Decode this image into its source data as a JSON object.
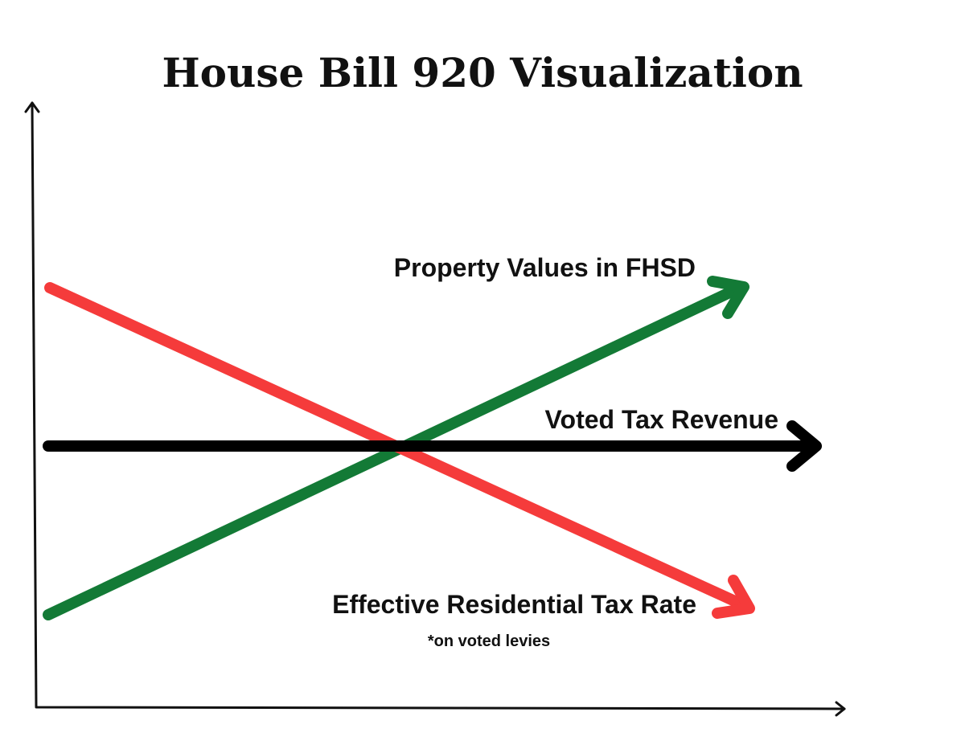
{
  "title": "House Bill 920 Visualization",
  "lines": [
    {
      "label": "Property Values in FHSD"
    },
    {
      "label": "Voted Tax Revenue"
    },
    {
      "label": "Effective Residential Tax Rate"
    }
  ],
  "footnote": "*on voted levies"
}
